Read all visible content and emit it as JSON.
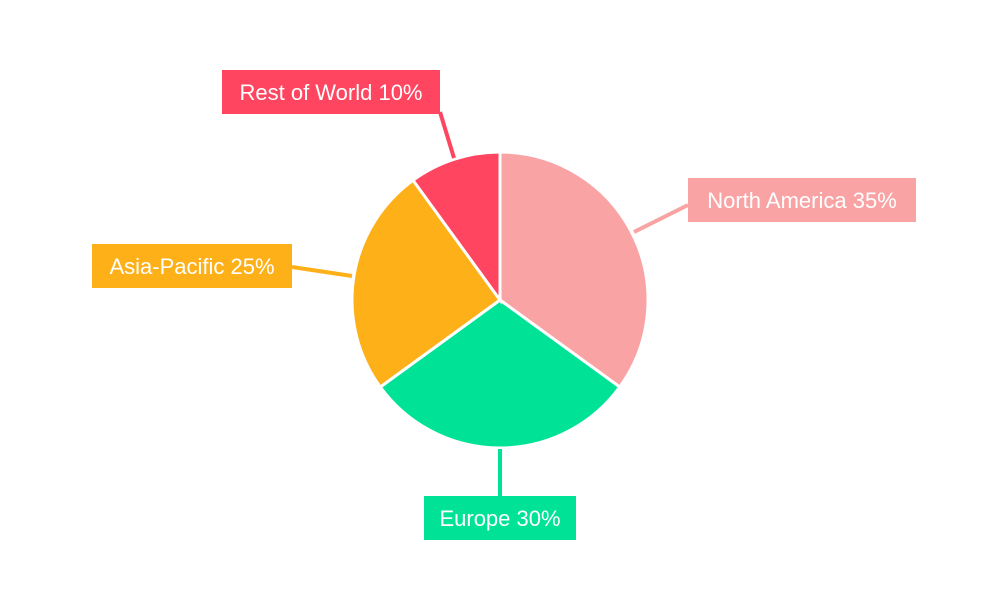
{
  "chart_data": {
    "type": "pie",
    "title": "",
    "start_angle": "top",
    "direction": "clockwise",
    "slices": [
      {
        "label": "North America",
        "value": 35,
        "text": "North America 35%",
        "color": "#F9A3A4"
      },
      {
        "label": "Europe",
        "value": 30,
        "text": "Europe 30%",
        "color": "#00E396"
      },
      {
        "label": "Asia-Pacific",
        "value": 25,
        "text": "Asia-Pacific 25%",
        "color": "#FEB019"
      },
      {
        "label": "Rest of World",
        "value": 10,
        "text": "Rest of World 10%",
        "color": "#FF4560"
      }
    ],
    "legend": "none"
  }
}
